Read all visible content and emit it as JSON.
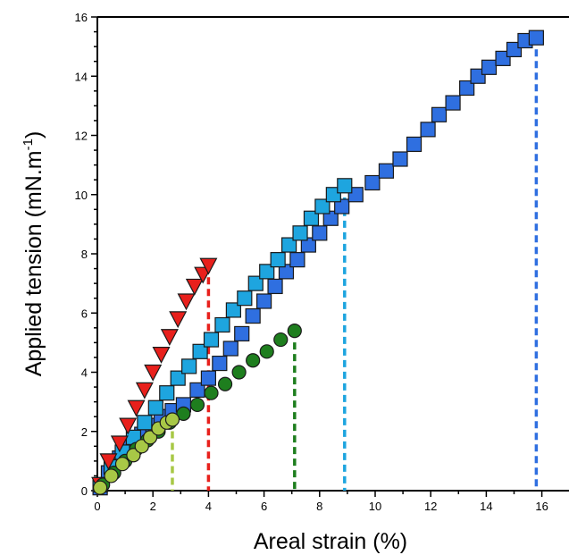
{
  "chart_data": {
    "type": "scatter",
    "xlabel": "Areal strain (%)",
    "ylabel_prefix": "Applied tension (mN.m",
    "ylabel_superscript": "-1",
    "ylabel_suffix": ")",
    "xlim": [
      0,
      17
    ],
    "ylim": [
      0,
      16
    ],
    "xticks": [
      0,
      2,
      4,
      6,
      8,
      10,
      12,
      14,
      16
    ],
    "yticks": [
      0,
      2,
      4,
      6,
      8,
      10,
      12,
      14,
      16
    ],
    "grid": false,
    "series": [
      {
        "marker": "square",
        "color": "#2f6fe0",
        "break_x": 15.8,
        "break_y": 15.3,
        "points": [
          [
            0.1,
            0.1
          ],
          [
            0.4,
            0.6
          ],
          [
            0.8,
            1.1
          ],
          [
            1.2,
            1.5
          ],
          [
            1.6,
            1.9
          ],
          [
            2.0,
            2.2
          ],
          [
            2.3,
            2.5
          ],
          [
            2.7,
            2.7
          ],
          [
            3.1,
            2.9
          ],
          [
            3.6,
            3.4
          ],
          [
            4.0,
            3.8
          ],
          [
            4.4,
            4.3
          ],
          [
            4.8,
            4.8
          ],
          [
            5.2,
            5.3
          ],
          [
            5.6,
            5.9
          ],
          [
            6.0,
            6.4
          ],
          [
            6.4,
            6.9
          ],
          [
            6.8,
            7.4
          ],
          [
            7.2,
            7.8
          ],
          [
            7.6,
            8.3
          ],
          [
            8.0,
            8.7
          ],
          [
            8.4,
            9.2
          ],
          [
            8.8,
            9.6
          ],
          [
            9.3,
            10.0
          ],
          [
            9.9,
            10.4
          ],
          [
            10.4,
            10.8
          ],
          [
            10.9,
            11.2
          ],
          [
            11.4,
            11.7
          ],
          [
            11.9,
            12.2
          ],
          [
            12.3,
            12.7
          ],
          [
            12.8,
            13.1
          ],
          [
            13.3,
            13.6
          ],
          [
            13.7,
            14.0
          ],
          [
            14.1,
            14.3
          ],
          [
            14.6,
            14.6
          ],
          [
            15.0,
            14.9
          ],
          [
            15.4,
            15.2
          ],
          [
            15.8,
            15.3
          ]
        ]
      },
      {
        "marker": "square",
        "color": "#1ea5df",
        "break_x": 8.9,
        "break_y": 10.3,
        "points": [
          [
            0.1,
            0.2
          ],
          [
            0.5,
            0.8
          ],
          [
            0.9,
            1.3
          ],
          [
            1.3,
            1.8
          ],
          [
            1.7,
            2.3
          ],
          [
            2.1,
            2.8
          ],
          [
            2.5,
            3.3
          ],
          [
            2.9,
            3.8
          ],
          [
            3.3,
            4.2
          ],
          [
            3.7,
            4.7
          ],
          [
            4.1,
            5.1
          ],
          [
            4.5,
            5.6
          ],
          [
            4.9,
            6.1
          ],
          [
            5.3,
            6.5
          ],
          [
            5.7,
            7.0
          ],
          [
            6.1,
            7.4
          ],
          [
            6.5,
            7.8
          ],
          [
            6.9,
            8.3
          ],
          [
            7.3,
            8.7
          ],
          [
            7.7,
            9.2
          ],
          [
            8.1,
            9.6
          ],
          [
            8.5,
            10.0
          ],
          [
            8.9,
            10.3
          ]
        ]
      },
      {
        "marker": "triangle-down",
        "color": "#e8201c",
        "break_x": 4.0,
        "break_y": 7.6,
        "points": [
          [
            0.1,
            0.2
          ],
          [
            0.4,
            1.0
          ],
          [
            0.8,
            1.6
          ],
          [
            1.1,
            2.2
          ],
          [
            1.4,
            2.8
          ],
          [
            1.7,
            3.4
          ],
          [
            2.0,
            4.0
          ],
          [
            2.3,
            4.6
          ],
          [
            2.6,
            5.2
          ],
          [
            2.9,
            5.8
          ],
          [
            3.2,
            6.4
          ],
          [
            3.5,
            6.9
          ],
          [
            3.8,
            7.3
          ],
          [
            4.0,
            7.6
          ]
        ]
      },
      {
        "marker": "circle",
        "color": "#1e7e1e",
        "break_x": 7.1,
        "break_y": 5.4,
        "points": [
          [
            0.2,
            0.2
          ],
          [
            0.6,
            0.6
          ],
          [
            1.0,
            1.0
          ],
          [
            1.4,
            1.4
          ],
          [
            1.8,
            1.7
          ],
          [
            2.2,
            2.0
          ],
          [
            2.6,
            2.3
          ],
          [
            3.1,
            2.6
          ],
          [
            3.6,
            2.9
          ],
          [
            4.1,
            3.3
          ],
          [
            4.6,
            3.6
          ],
          [
            5.1,
            4.0
          ],
          [
            5.6,
            4.4
          ],
          [
            6.1,
            4.7
          ],
          [
            6.6,
            5.1
          ],
          [
            7.1,
            5.4
          ]
        ]
      },
      {
        "marker": "circle",
        "color": "#a8c846",
        "break_x": 2.7,
        "break_y": 2.4,
        "points": [
          [
            0.1,
            0.1
          ],
          [
            0.5,
            0.5
          ],
          [
            0.9,
            0.9
          ],
          [
            1.3,
            1.2
          ],
          [
            1.6,
            1.5
          ],
          [
            1.9,
            1.8
          ],
          [
            2.2,
            2.1
          ],
          [
            2.5,
            2.3
          ],
          [
            2.7,
            2.4
          ]
        ]
      }
    ]
  }
}
